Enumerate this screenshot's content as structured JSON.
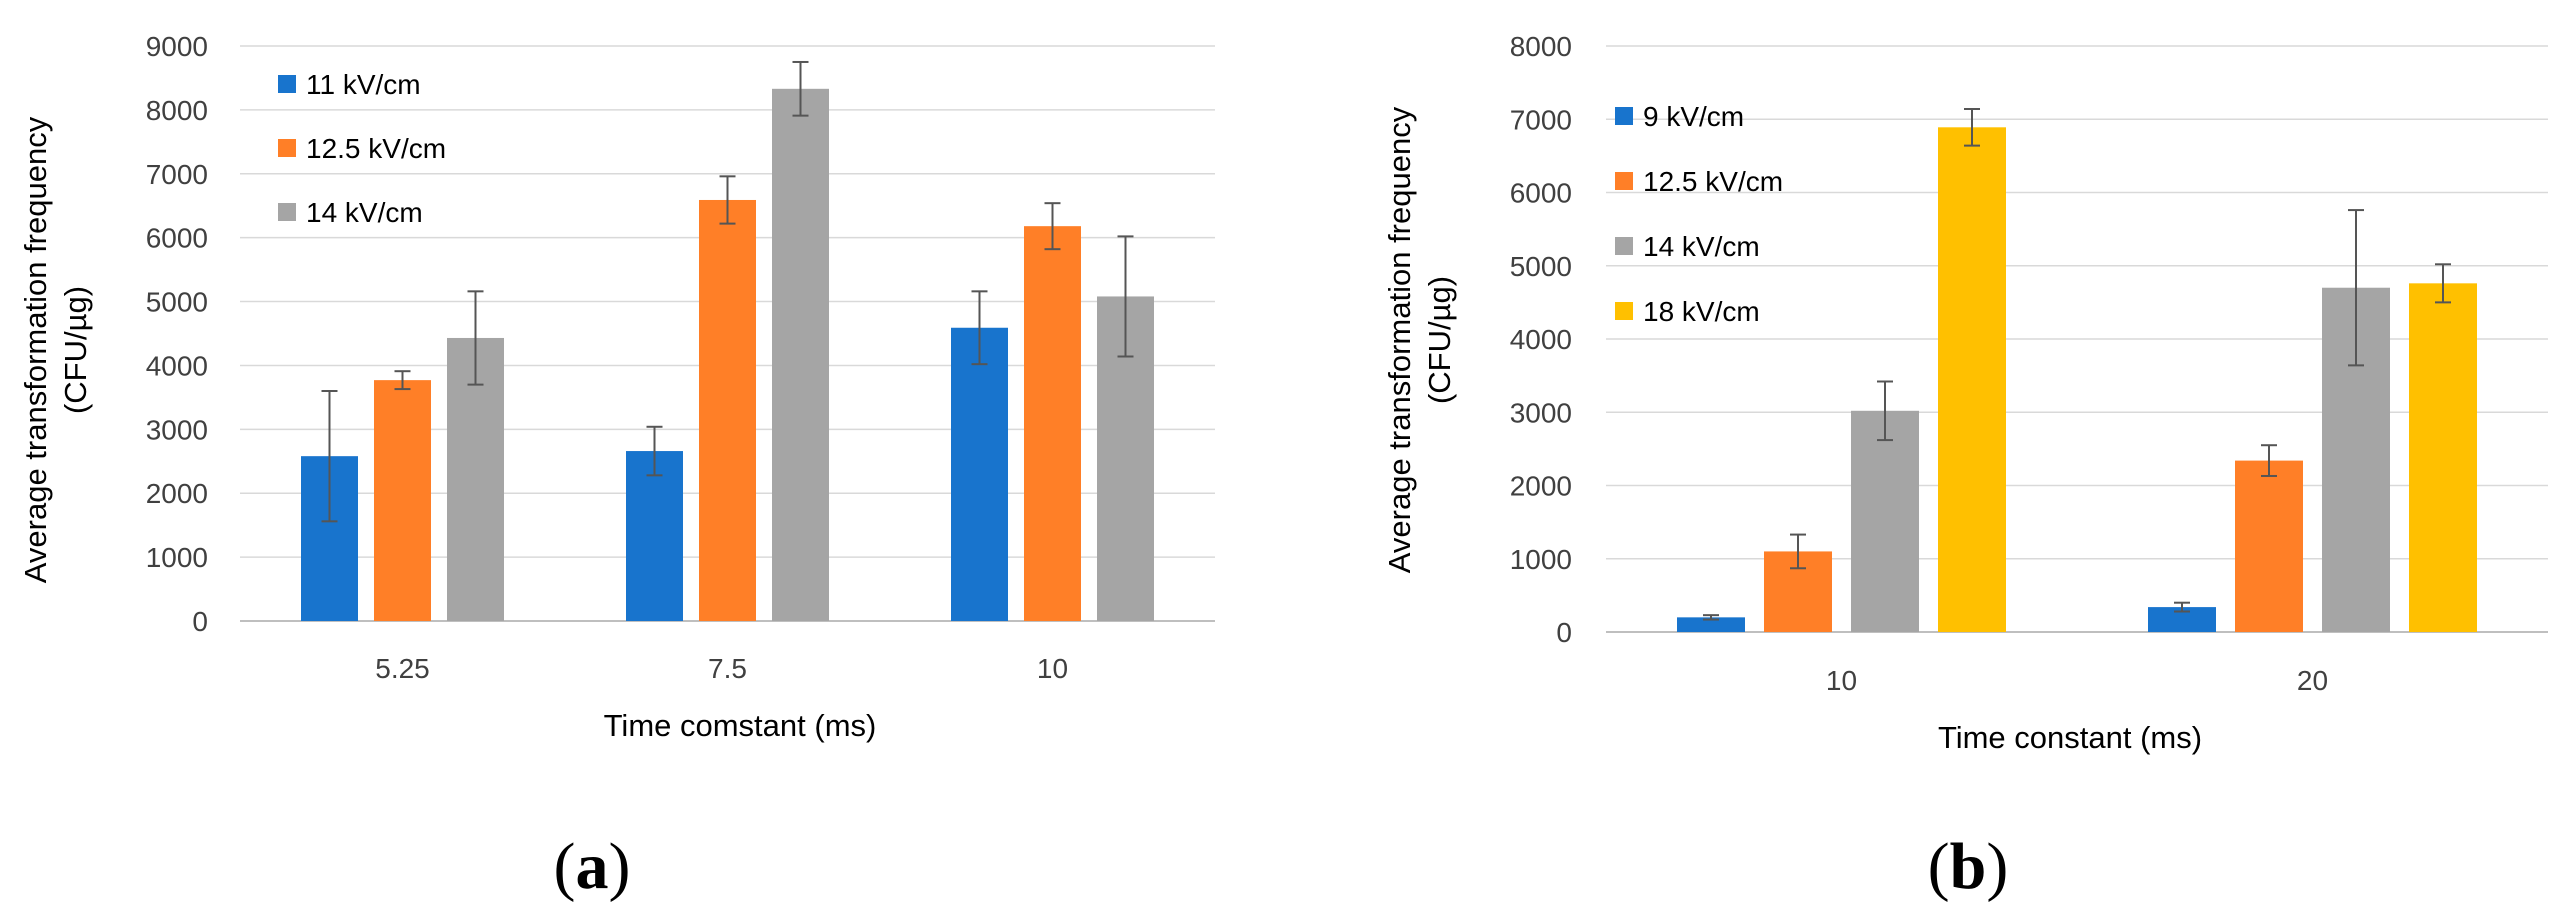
{
  "chart_data": [
    {
      "type": "bar",
      "panel_label": "a",
      "title": "",
      "xlabel": "Time comstant (ms)",
      "ylabel_line1": "Average transformation frequency",
      "ylabel_line2": "(CFU/µg)",
      "ylim": [
        0,
        9000
      ],
      "yticks": [
        0,
        1000,
        2000,
        3000,
        4000,
        5000,
        6000,
        7000,
        8000,
        9000
      ],
      "categories": [
        "5.25",
        "7.5",
        "10"
      ],
      "grid": true,
      "legend_position": "top-left",
      "series": [
        {
          "name": "11 kV/cm",
          "color": "#1874CD",
          "values": [
            2580,
            2660,
            4590
          ],
          "errors": [
            1020,
            380,
            570
          ]
        },
        {
          "name": "12.5 kV/cm",
          "color": "#FF7F27",
          "values": [
            3770,
            6590,
            6180
          ],
          "errors": [
            140,
            370,
            360
          ]
        },
        {
          "name": "14 kV/cm",
          "color": "#A5A5A5",
          "values": [
            4430,
            8330,
            5080
          ],
          "errors": [
            730,
            420,
            940
          ]
        }
      ]
    },
    {
      "type": "bar",
      "panel_label": "b",
      "title": "",
      "xlabel": "Time constant (ms)",
      "ylabel_line1": "Average transformation frequency",
      "ylabel_line2": "(CFU/µg)",
      "ylim": [
        0,
        8000
      ],
      "yticks": [
        0,
        1000,
        2000,
        3000,
        4000,
        5000,
        6000,
        7000,
        8000
      ],
      "categories": [
        "10",
        "20"
      ],
      "grid": true,
      "legend_position": "top-left",
      "series": [
        {
          "name": "9 kV/cm",
          "color": "#1874CD",
          "values": [
            200,
            340
          ],
          "errors": [
            30,
            60
          ]
        },
        {
          "name": "12.5 kV/cm",
          "color": "#FF7F27",
          "values": [
            1100,
            2340
          ],
          "errors": [
            230,
            210
          ]
        },
        {
          "name": "14 kV/cm",
          "color": "#A5A5A5",
          "values": [
            3020,
            4700
          ],
          "errors": [
            400,
            1060
          ]
        },
        {
          "name": "18 kV/cm",
          "color": "#FFC000",
          "values": [
            6890,
            4760
          ],
          "errors": [
            250,
            260
          ]
        }
      ]
    }
  ]
}
